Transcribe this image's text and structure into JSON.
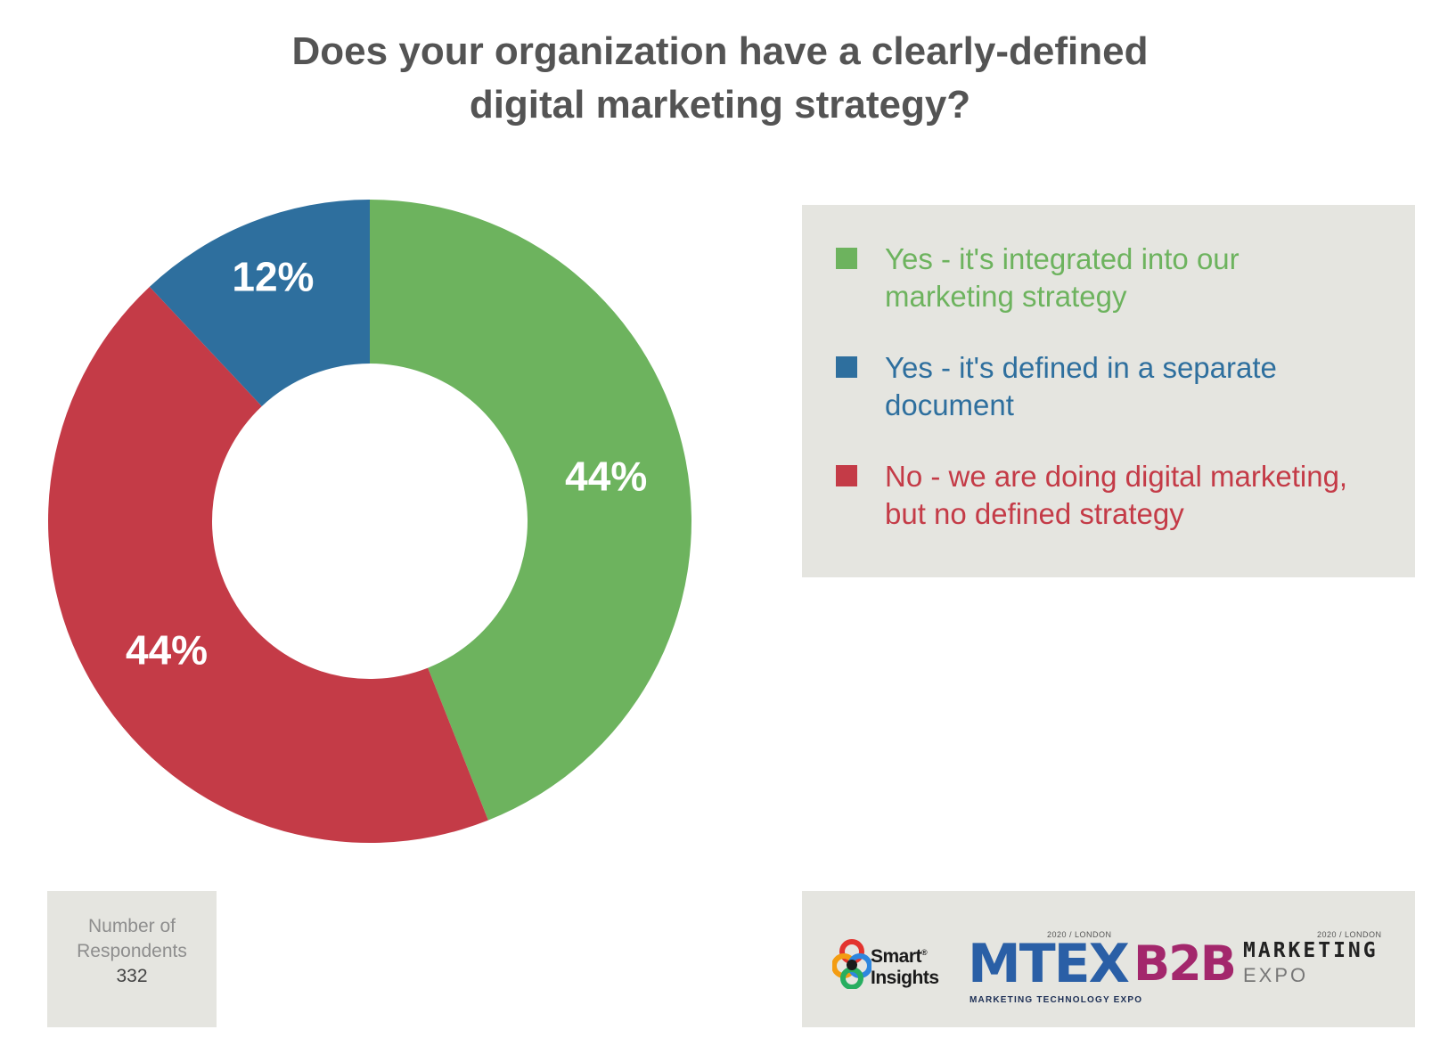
{
  "chart_data": {
    "type": "pie",
    "title_lines": [
      "Does your organization have a clearly-defined",
      "digital marketing strategy?"
    ],
    "series": [
      {
        "name": "Yes - it's integrated into our marketing strategy",
        "label_lines": [
          "Yes - it's integrated into our",
          "marketing strategy"
        ],
        "value": 44,
        "label": "44%",
        "color": "#6db35e"
      },
      {
        "name": "No - we are doing digital marketing, but no defined strategy",
        "label_lines": [
          "No - we are doing digital marketing,",
          "but no defined strategy"
        ],
        "value": 44,
        "label": "44%",
        "color": "#c43b47"
      },
      {
        "name": "Yes - it's defined in a separate document",
        "label_lines": [
          "Yes - it's defined in a separate",
          "document"
        ],
        "value": 12,
        "label": "12%",
        "color": "#2e6f9e"
      }
    ],
    "legend_order": [
      0,
      2,
      1
    ],
    "legend_placement": "right",
    "donut": true
  },
  "respondents": {
    "label_lines": [
      "Number of",
      "Respondents"
    ],
    "value": "332"
  },
  "logos": {
    "smart_insights_lines": [
      "Smart",
      "Insights"
    ],
    "smart_insights_mark": "®",
    "mtex_location": "2020 / LONDON",
    "mtex_name": "MTEX",
    "mtex_tagline": "MARKETING TECHNOLOGY EXPO",
    "b2b_location": "2020 / LONDON",
    "b2b_name": "B2B",
    "b2b_word1": "MARKETING",
    "b2b_word2": "EXPO"
  }
}
